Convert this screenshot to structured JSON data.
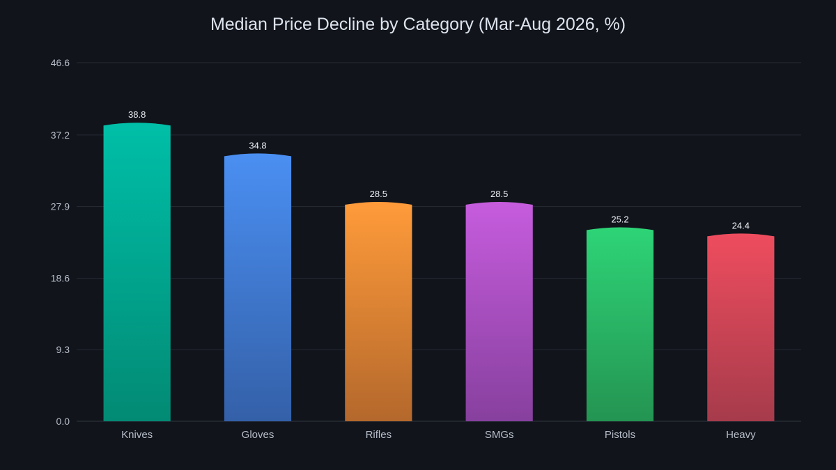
{
  "chart_data": {
    "type": "bar",
    "title": "Median Price Decline by Category (Mar-Aug 2026, %)",
    "xlabel": "",
    "ylabel": "",
    "categories": [
      "Knives",
      "Gloves",
      "Rifles",
      "SMGs",
      "Pistols",
      "Heavy"
    ],
    "values": [
      38.8,
      34.8,
      28.5,
      28.5,
      25.2,
      24.4
    ],
    "data_labels": [
      "38.8",
      "34.8",
      "28.5",
      "28.5",
      "25.2",
      "24.4"
    ],
    "ylim": [
      0,
      46.6
    ],
    "yticks": [
      0.0,
      9.3,
      18.6,
      27.9,
      37.2,
      46.6
    ],
    "ytick_labels": [
      "0.0",
      "9.3",
      "18.6",
      "27.9",
      "37.2",
      "46.6"
    ],
    "grid": true,
    "legend": "none",
    "colors": [
      [
        "#00bfa8",
        "#028a74"
      ],
      [
        "#4a8ff2",
        "#3460a8"
      ],
      [
        "#ff9b3a",
        "#b4682c"
      ],
      [
        "#c65cdd",
        "#87409e"
      ],
      [
        "#2ed477",
        "#249452"
      ],
      [
        "#ee4d5e",
        "#a63b4b"
      ]
    ],
    "background": "#11141b"
  }
}
